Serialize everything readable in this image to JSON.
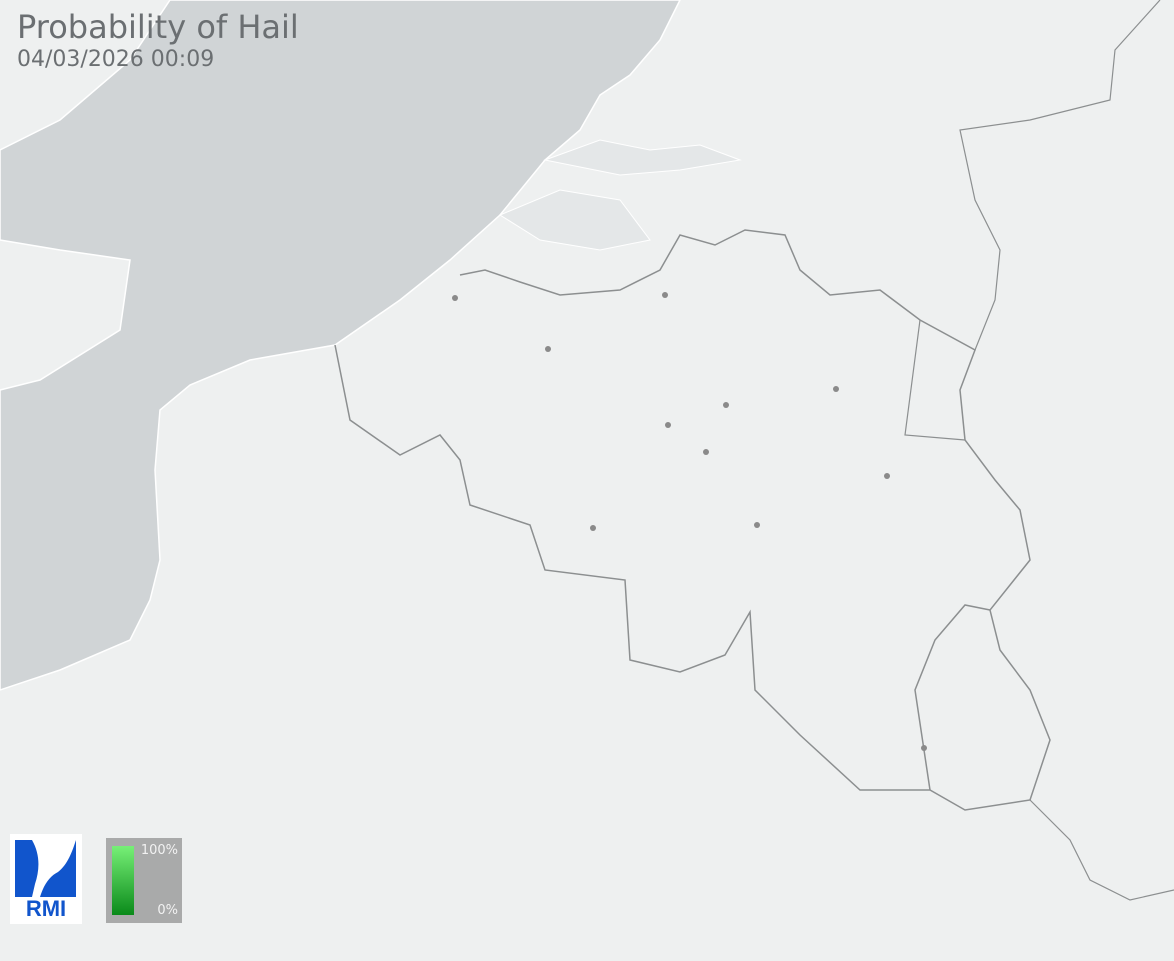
{
  "header": {
    "title": "Probability of Hail",
    "timestamp": "04/03/2026 00:09"
  },
  "logo": {
    "text": "RMI",
    "color": "#1155cc"
  },
  "legend": {
    "max_label": "100%",
    "min_label": "0%",
    "color_top": "#77f077",
    "color_bottom": "#0a8a1a",
    "current_level": "0%"
  },
  "map": {
    "land_color": "#eef0f0",
    "sea_color": "#d0d4d6",
    "border_color": "#8c8f90",
    "city_color": "#8a8a8a"
  }
}
